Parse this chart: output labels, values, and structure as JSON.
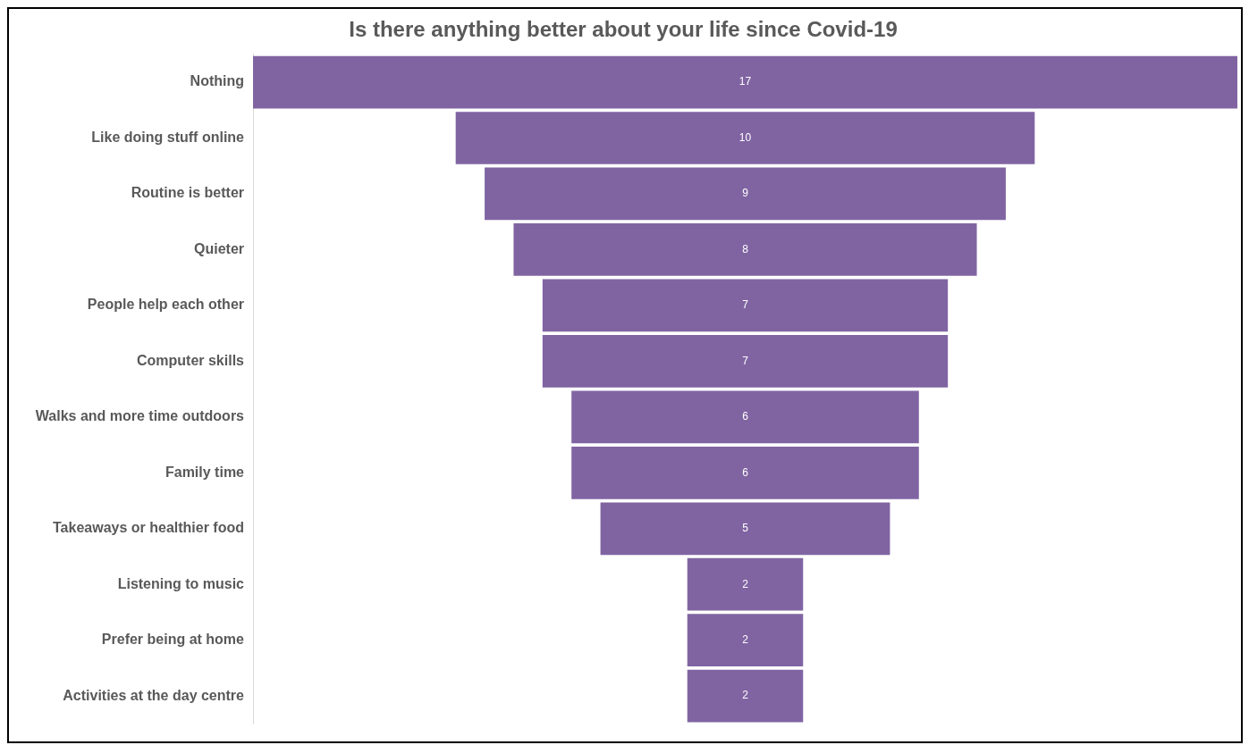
{
  "chart_data": {
    "type": "other",
    "title": "Is there anything better about your life since Covid-19",
    "categories": [
      "Nothing",
      "Like doing stuff online",
      "Routine is better",
      "Quieter",
      "People help each other",
      "Computer skills",
      "Walks and more time outdoors",
      "Family time",
      "Takeaways or healthier food",
      "Listening to music",
      "Prefer being at home",
      "Activities at the day centre"
    ],
    "values": [
      17,
      10,
      9,
      8,
      7,
      7,
      6,
      6,
      5,
      2,
      2,
      2
    ],
    "color": "#8064a2",
    "data_labels": true
  }
}
